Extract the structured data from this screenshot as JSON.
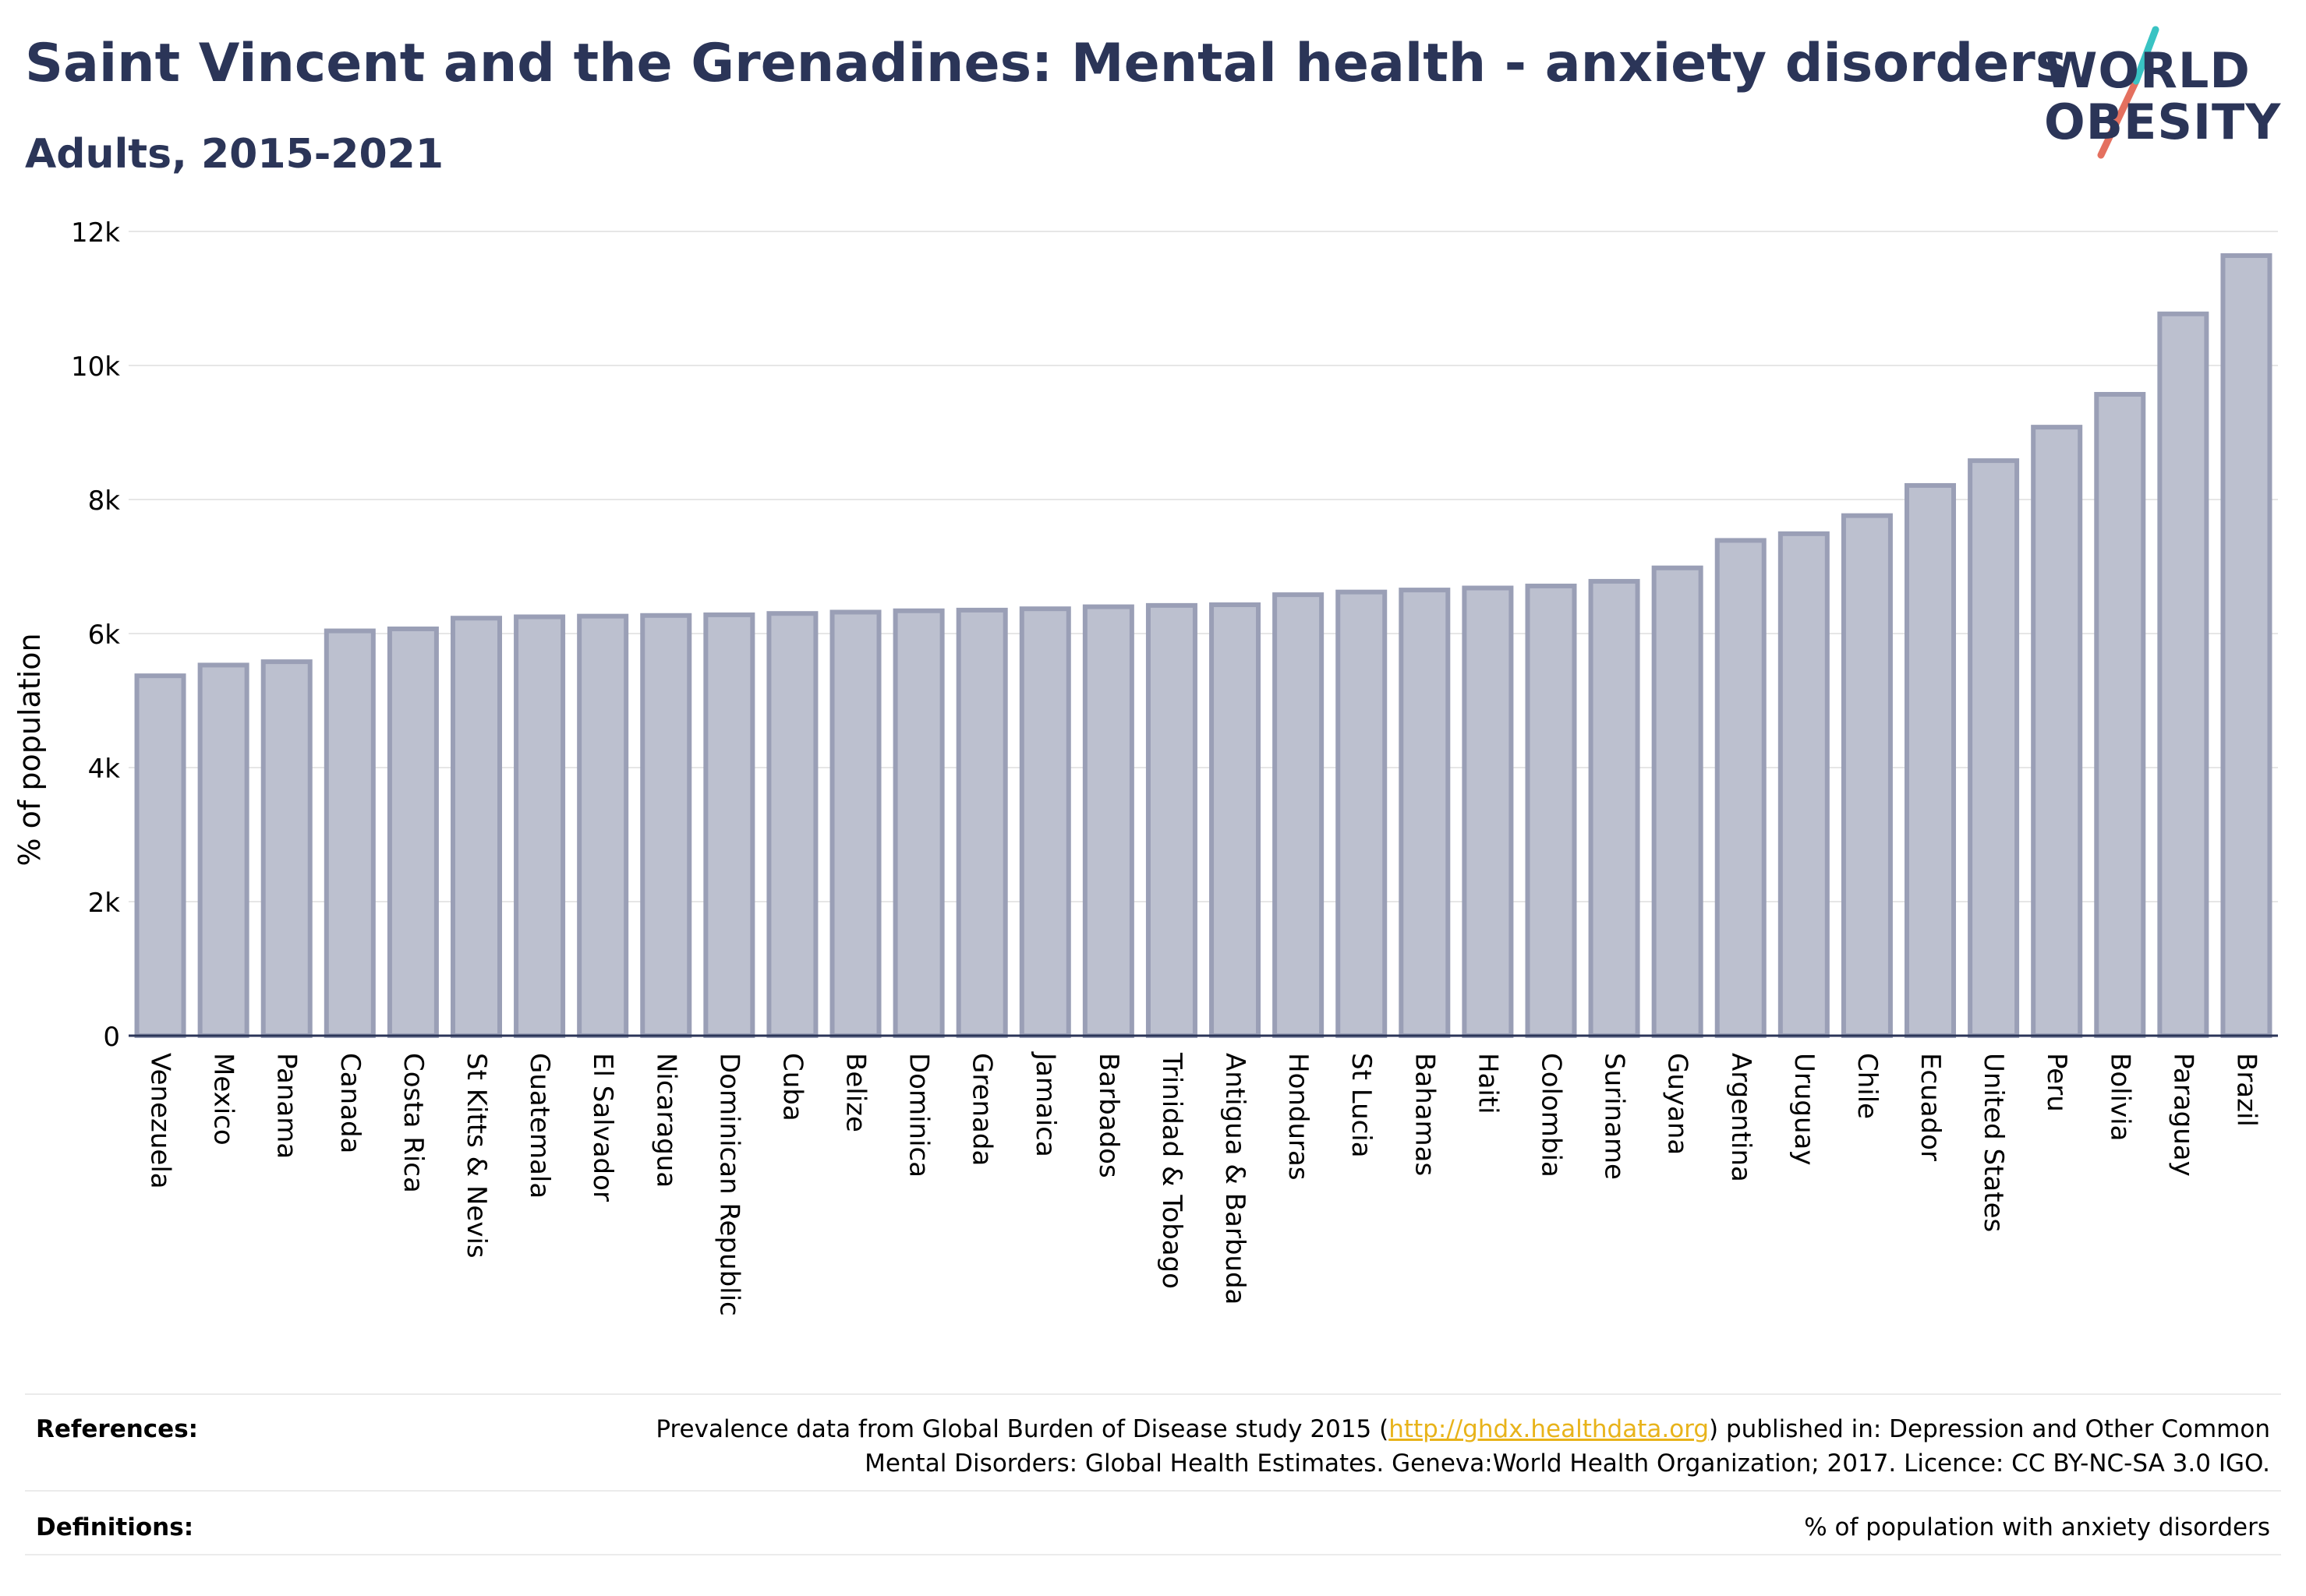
{
  "header": {
    "title": "Saint Vincent and the Grenadines: Mental health - anxiety disorders",
    "subtitle": "Adults, 2015-2021"
  },
  "logo": {
    "line1": "WORLD",
    "line2": "OBESITY",
    "slash_colors": [
      "#e4705f",
      "#39c3c3"
    ]
  },
  "chart_data": {
    "type": "bar",
    "ylabel": "% of population",
    "xlabel": "",
    "ylim": [
      0,
      12000
    ],
    "yticks": [
      0,
      2000,
      4000,
      6000,
      8000,
      10000,
      12000
    ],
    "ytick_labels": [
      "0",
      "2k",
      "4k",
      "6k",
      "8k",
      "10k",
      "12k"
    ],
    "grid": true,
    "bar_fill": "#bcc0cf",
    "bar_stroke": "#9a9fb6",
    "categories": [
      "Venezuela",
      "Mexico",
      "Panama",
      "Canada",
      "Costa Rica",
      "St Kitts & Nevis",
      "Guatemala",
      "El Salvador",
      "Nicaragua",
      "Dominican Republic",
      "Cuba",
      "Belize",
      "Dominica",
      "Grenada",
      "Jamaica",
      "Barbados",
      "Trinidad & Tobago",
      "Antigua & Barbuda",
      "Honduras",
      "St Lucia",
      "Bahamas",
      "Haiti",
      "Colombia",
      "Suriname",
      "Guyana",
      "Argentina",
      "Uruguay",
      "Chile",
      "Ecuador",
      "United States",
      "Peru",
      "Bolivia",
      "Paraguay",
      "Brazil"
    ],
    "values": [
      5370,
      5530,
      5580,
      6040,
      6070,
      6230,
      6250,
      6260,
      6270,
      6280,
      6300,
      6320,
      6340,
      6350,
      6370,
      6400,
      6420,
      6430,
      6580,
      6620,
      6650,
      6680,
      6710,
      6780,
      6980,
      7390,
      7490,
      7760,
      8210,
      8580,
      9080,
      9570,
      10770,
      11640
    ]
  },
  "footer": {
    "references_label": "References:",
    "references_text_1": "Prevalence data from Global Burden of Disease study 2015 (",
    "references_link": "http://ghdx.healthdata.org",
    "references_text_2": ") published in: Depression and Other Common",
    "references_text_3": "Mental Disorders: Global Health Estimates. Geneva:World Health Organization; 2017. Licence: CC BY-NC-SA 3.0 IGO.",
    "definitions_label": "Definitions:",
    "definitions_text": "% of population with anxiety disorders"
  }
}
